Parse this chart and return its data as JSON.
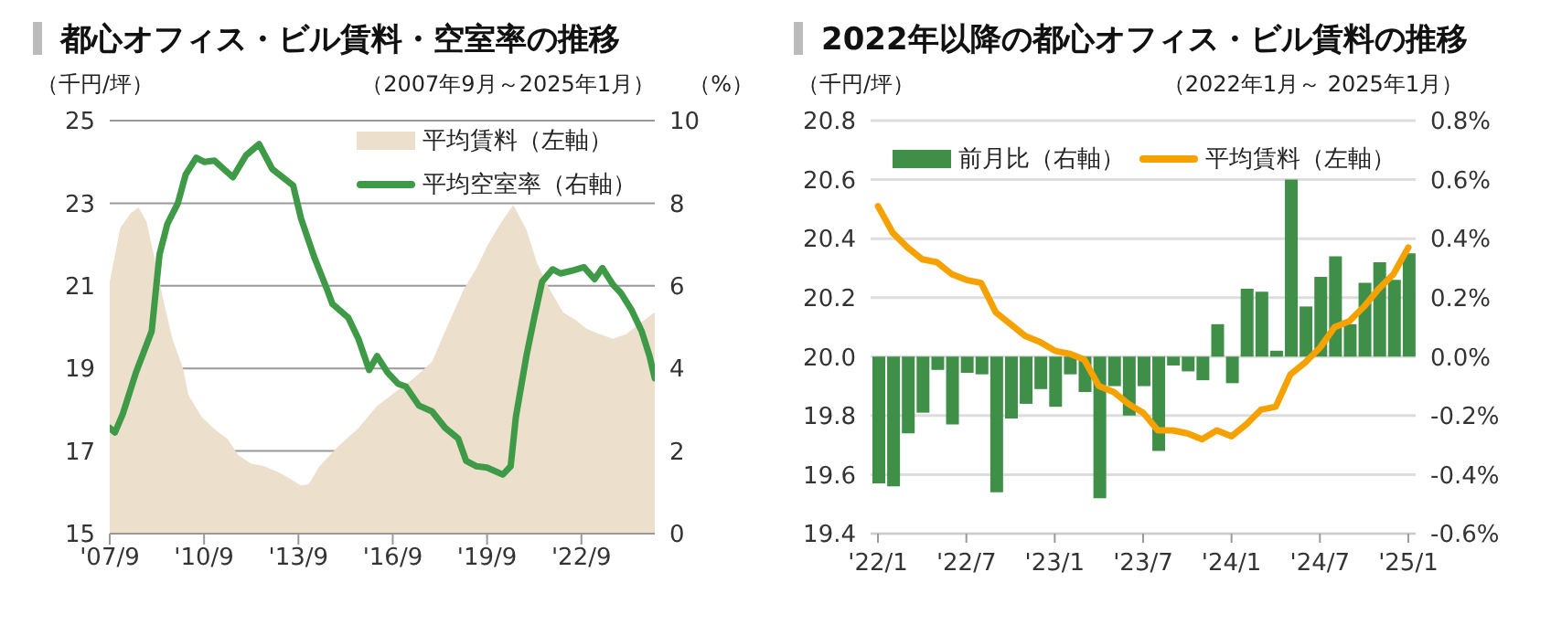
{
  "chart_data": [
    {
      "type": "area",
      "title": "都心オフィス・ビル賃料・空室率の推移",
      "subtitle": "（2007年9月～2025年1月）",
      "ylabel": "（千円/坪）",
      "y2label": "（%）",
      "legend": "top right",
      "grid": "y",
      "xlim": [
        "2007-09",
        "2025-01"
      ],
      "xticks": [
        {
          "value": "2007-09",
          "label": "'07/9"
        },
        {
          "value": "2010-09",
          "label": "'10/9"
        },
        {
          "value": "2013-09",
          "label": "'13/9"
        },
        {
          "value": "2016-09",
          "label": "'16/9"
        },
        {
          "value": "2019-09",
          "label": "'19/9"
        },
        {
          "value": "2022-09",
          "label": "'22/9"
        }
      ],
      "ylim": [
        15,
        25
      ],
      "yticks": [
        15,
        17,
        19,
        21,
        23,
        25
      ],
      "y2lim": [
        0,
        10
      ],
      "y2ticks": [
        0,
        2,
        4,
        6,
        8,
        10
      ],
      "series": [
        {
          "name": "平均賃料（左軸）",
          "color": "#ecdfcc",
          "x": [
            "2007-09",
            "2008-01",
            "2008-05",
            "2008-08",
            "2008-11",
            "2009-02",
            "2009-06",
            "2009-09",
            "2010-01",
            "2010-03",
            "2010-08",
            "2011-01",
            "2011-06",
            "2011-10",
            "2012-03",
            "2012-08",
            "2013-01",
            "2013-05",
            "2013-10",
            "2014-01",
            "2014-05",
            "2014-12",
            "2015-08",
            "2016-03",
            "2016-10",
            "2017-05",
            "2017-12",
            "2018-05",
            "2018-12",
            "2019-05",
            "2019-09",
            "2020-02",
            "2020-07",
            "2020-12",
            "2021-04",
            "2021-09",
            "2022-02",
            "2022-07",
            "2022-11",
            "2023-04",
            "2023-09",
            "2024-02",
            "2024-06",
            "2025-01"
          ],
          "values": [
            21.1,
            22.4,
            22.76,
            22.9,
            22.56,
            21.7,
            20.5,
            19.7,
            19.0,
            18.36,
            17.83,
            17.53,
            17.29,
            16.9,
            16.7,
            16.63,
            16.5,
            16.36,
            16.16,
            16.2,
            16.63,
            17.1,
            17.56,
            18.09,
            18.43,
            18.76,
            19.16,
            19.9,
            20.9,
            21.43,
            21.96,
            22.5,
            22.96,
            22.36,
            21.56,
            20.9,
            20.36,
            20.16,
            19.96,
            19.83,
            19.72,
            19.83,
            20.03,
            20.36
          ]
        },
        {
          "name": "平均空室率（右軸）",
          "type": "line",
          "axis": "y2",
          "color": "#3e9a47",
          "x": [
            "2007-09",
            "2007-11",
            "2008-02",
            "2008-07",
            "2009-01",
            "2009-04",
            "2009-07",
            "2009-11",
            "2010-02",
            "2010-06",
            "2010-09",
            "2011-01",
            "2011-08",
            "2012-01",
            "2012-06",
            "2012-11",
            "2013-03",
            "2013-07",
            "2013-10",
            "2014-03",
            "2014-08",
            "2014-10",
            "2015-04",
            "2015-08",
            "2015-12",
            "2016-03",
            "2016-07",
            "2016-11",
            "2017-02",
            "2017-07",
            "2017-12",
            "2018-05",
            "2018-10",
            "2019-01",
            "2019-05",
            "2019-09",
            "2020-03",
            "2020-06",
            "2020-08",
            "2020-12",
            "2021-03",
            "2021-06",
            "2021-10",
            "2022-01",
            "2022-05",
            "2022-10",
            "2023-02",
            "2023-05",
            "2023-09",
            "2023-12",
            "2024-04",
            "2024-08",
            "2024-11",
            "2025-01"
          ],
          "values": [
            2.56,
            2.45,
            2.9,
            3.9,
            4.9,
            6.76,
            7.5,
            8.0,
            8.7,
            9.1,
            9.0,
            9.03,
            8.63,
            9.16,
            9.43,
            8.83,
            8.63,
            8.43,
            7.63,
            6.7,
            5.9,
            5.56,
            5.23,
            4.7,
            3.96,
            4.3,
            3.9,
            3.63,
            3.56,
            3.1,
            2.96,
            2.56,
            2.3,
            1.76,
            1.63,
            1.6,
            1.43,
            1.63,
            2.83,
            4.3,
            5.23,
            6.1,
            6.4,
            6.3,
            6.36,
            6.45,
            6.16,
            6.43,
            6.03,
            5.83,
            5.43,
            4.9,
            4.3,
            3.76
          ]
        }
      ]
    },
    {
      "type": "bar",
      "title": "2022年以降の都心オフィス・ビル賃料の推移",
      "subtitle": "（2022年1月～ 2025年1月）",
      "ylabel": "（千円/坪）",
      "legend": "top",
      "grid": "y",
      "categories": [
        "'22/1",
        null,
        null,
        null,
        null,
        null,
        "'22/7",
        null,
        null,
        null,
        null,
        null,
        "'23/1",
        null,
        null,
        null,
        null,
        null,
        "'23/7",
        null,
        null,
        null,
        null,
        null,
        "'24/1",
        null,
        null,
        null,
        null,
        null,
        "'24/7",
        null,
        null,
        null,
        null,
        null,
        "'25/1"
      ],
      "ylim": [
        19.4,
        20.8
      ],
      "yticks": [
        19.4,
        19.6,
        19.8,
        {
          "value": 20,
          "label": "20.0"
        },
        20.2,
        20.4,
        20.6,
        20.8
      ],
      "y2lim": [
        -0.6,
        0.8
      ],
      "y2ticks": [
        {
          "value": -0.6,
          "label": "-0.6%"
        },
        {
          "value": -0.4,
          "label": "-0.4%"
        },
        {
          "value": -0.2,
          "label": "-0.2%"
        },
        {
          "value": 0,
          "label": "0.0%"
        },
        {
          "value": 0.2,
          "label": "0.2%"
        },
        {
          "value": 0.4,
          "label": "0.4%"
        },
        {
          "value": 0.6,
          "label": "0.6%"
        },
        {
          "value": 0.8,
          "label": "0.8%"
        }
      ],
      "series": [
        {
          "name": "前月比（右軸）",
          "axis": "y2",
          "color": "#3f8f48",
          "values": [
            -0.43,
            -0.44,
            -0.26,
            -0.19,
            -0.045,
            -0.23,
            -0.055,
            -0.06,
            -0.46,
            -0.21,
            -0.16,
            -0.11,
            -0.17,
            -0.06,
            -0.12,
            -0.48,
            -0.1,
            -0.2,
            -0.1,
            -0.32,
            -0.03,
            -0.05,
            -0.08,
            0.11,
            -0.09,
            0.23,
            0.22,
            0.02,
            0.6,
            0.17,
            0.27,
            0.34,
            0.11,
            0.25,
            0.32,
            0.26,
            0.35
          ]
        },
        {
          "name": "平均賃料（左軸）",
          "type": "line",
          "color": "#f5a200",
          "values": [
            20.51,
            20.42,
            20.37,
            20.33,
            20.32,
            20.28,
            20.26,
            20.25,
            20.15,
            20.11,
            20.07,
            20.05,
            20.02,
            20.01,
            19.99,
            19.9,
            19.88,
            19.84,
            19.81,
            19.75,
            19.75,
            19.74,
            19.72,
            19.75,
            19.73,
            19.77,
            19.82,
            19.83,
            19.94,
            19.98,
            20.03,
            20.1,
            20.12,
            20.17,
            20.23,
            20.28,
            20.37
          ]
        }
      ]
    }
  ]
}
